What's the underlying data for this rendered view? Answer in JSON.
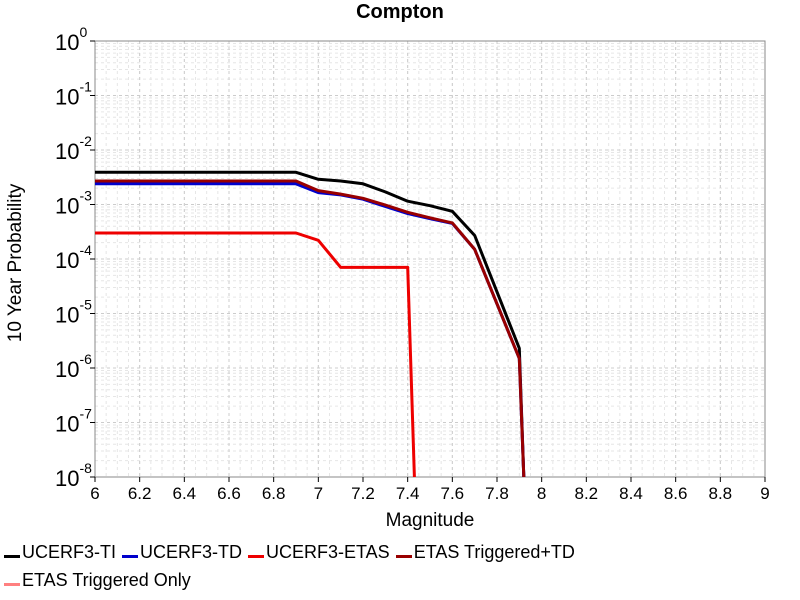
{
  "chart_data": {
    "type": "line",
    "title": "Compton",
    "xlabel": "Magnitude",
    "ylabel": "10 Year Probability",
    "xlim": [
      6,
      9
    ],
    "ylim": [
      1e-08,
      1
    ],
    "yscale": "log",
    "grid": true,
    "legend_position": "bottom",
    "x_ticks": [
      "6",
      "6.2",
      "6.4",
      "6.6",
      "6.8",
      "7",
      "7.2",
      "7.4",
      "7.6",
      "7.8",
      "8",
      "8.2",
      "8.4",
      "8.6",
      "8.8",
      "9"
    ],
    "y_ticks": [
      {
        "base": "10",
        "exp": "0"
      },
      {
        "base": "10",
        "exp": "-1"
      },
      {
        "base": "10",
        "exp": "-2"
      },
      {
        "base": "10",
        "exp": "-3"
      },
      {
        "base": "10",
        "exp": "-4"
      },
      {
        "base": "10",
        "exp": "-5"
      },
      {
        "base": "10",
        "exp": "-6"
      },
      {
        "base": "10",
        "exp": "-7"
      },
      {
        "base": "10",
        "exp": "-8"
      }
    ],
    "series": [
      {
        "name": "UCERF3-TI",
        "color": "#000000",
        "points": [
          [
            6,
            0.0039
          ],
          [
            6.9,
            0.0039
          ],
          [
            7.0,
            0.0029
          ],
          [
            7.1,
            0.0027
          ],
          [
            7.2,
            0.0024
          ],
          [
            7.3,
            0.0017
          ],
          [
            7.4,
            0.00115
          ],
          [
            7.5,
            0.00095
          ],
          [
            7.6,
            0.00075
          ],
          [
            7.7,
            0.00027
          ],
          [
            7.9,
            2.3e-06
          ],
          [
            7.92,
            1e-08
          ]
        ]
      },
      {
        "name": "UCERF3-TD",
        "color": "#0000cc",
        "points": [
          [
            6,
            0.0024
          ],
          [
            6.9,
            0.0024
          ],
          [
            7.0,
            0.00165
          ],
          [
            7.1,
            0.0015
          ],
          [
            7.2,
            0.00125
          ],
          [
            7.3,
            0.00092
          ],
          [
            7.4,
            0.00068
          ],
          [
            7.5,
            0.00055
          ],
          [
            7.6,
            0.00045
          ],
          [
            7.7,
            0.00015
          ],
          [
            7.9,
            1.5e-06
          ],
          [
            7.92,
            1e-08
          ]
        ]
      },
      {
        "name": "UCERF3-ETAS",
        "color": "#ee0000",
        "points": [
          [
            6,
            0.0003
          ],
          [
            6.9,
            0.0003
          ],
          [
            7.0,
            0.00022
          ],
          [
            7.1,
            7e-05
          ],
          [
            7.2,
            7e-05
          ],
          [
            7.4,
            7e-05
          ],
          [
            7.43,
            1e-08
          ]
        ]
      },
      {
        "name": "ETAS Triggered+TD",
        "color": "#990000",
        "points": [
          [
            6,
            0.0027
          ],
          [
            6.9,
            0.0027
          ],
          [
            7.0,
            0.0018
          ],
          [
            7.1,
            0.00155
          ],
          [
            7.2,
            0.0013
          ],
          [
            7.3,
            0.00098
          ],
          [
            7.4,
            0.00072
          ],
          [
            7.5,
            0.00057
          ],
          [
            7.6,
            0.00046
          ],
          [
            7.7,
            0.00015
          ],
          [
            7.9,
            1.5e-06
          ],
          [
            7.92,
            1e-08
          ]
        ]
      },
      {
        "name": "ETAS Triggered Only",
        "color": "#ff8080",
        "points": []
      }
    ]
  }
}
